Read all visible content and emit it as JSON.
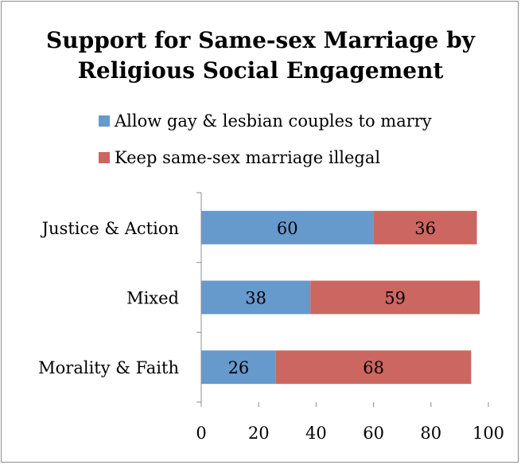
{
  "chart_data": {
    "type": "bar",
    "orientation": "horizontal",
    "stacked": true,
    "title_lines": [
      "Support for Same-sex Marriage by",
      "Religious Social Engagement"
    ],
    "categories": [
      "Justice & Action",
      "Mixed",
      "Morality & Faith"
    ],
    "series": [
      {
        "name": "Allow gay & lesbian couples to marry",
        "color": "#6699cc",
        "values": [
          60,
          38,
          26
        ]
      },
      {
        "name": "Keep same-sex marriage illegal",
        "color": "#cc6660",
        "values": [
          36,
          59,
          68
        ]
      }
    ],
    "xlim": [
      0,
      100
    ],
    "xticks": [
      0,
      20,
      40,
      60,
      80,
      100
    ],
    "legend_position": "top-left",
    "grid": false
  }
}
